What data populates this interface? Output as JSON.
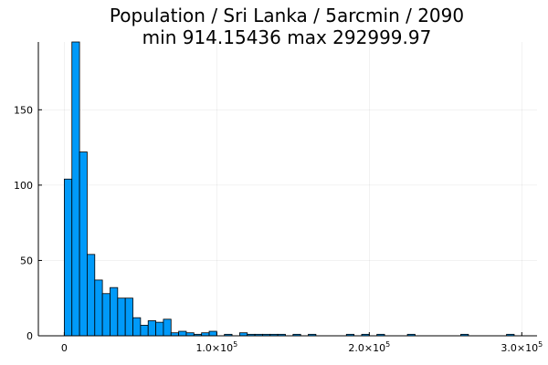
{
  "chart_data": {
    "type": "bar",
    "title_line1": "Population / Sri Lanka / 5arcmin / 2090",
    "title_line2": "min 914.15436  max 292999.97",
    "xlabel": "",
    "ylabel": "",
    "bin_width": 5000,
    "xlim": [
      -17000,
      310000
    ],
    "ylim": [
      0,
      195
    ],
    "grid": true,
    "legend": "none",
    "bar_color": "#009af9",
    "bar_edge_color": "#000000",
    "x_ticks": [
      {
        "value": 0,
        "mant": "0",
        "exp": ""
      },
      {
        "value": 100000,
        "mant": "1.0×10",
        "exp": "5"
      },
      {
        "value": 200000,
        "mant": "2.0×10",
        "exp": "5"
      },
      {
        "value": 300000,
        "mant": "3.0×10",
        "exp": "5"
      }
    ],
    "y_ticks": [
      0,
      50,
      100,
      150
    ],
    "bins": [
      {
        "x0": 0,
        "count": 104
      },
      {
        "x0": 5000,
        "count": 195
      },
      {
        "x0": 10000,
        "count": 122
      },
      {
        "x0": 15000,
        "count": 54
      },
      {
        "x0": 20000,
        "count": 37
      },
      {
        "x0": 25000,
        "count": 28
      },
      {
        "x0": 30000,
        "count": 32
      },
      {
        "x0": 35000,
        "count": 25
      },
      {
        "x0": 40000,
        "count": 25
      },
      {
        "x0": 45000,
        "count": 12
      },
      {
        "x0": 50000,
        "count": 7
      },
      {
        "x0": 55000,
        "count": 10
      },
      {
        "x0": 60000,
        "count": 9
      },
      {
        "x0": 65000,
        "count": 11
      },
      {
        "x0": 70000,
        "count": 2
      },
      {
        "x0": 75000,
        "count": 3
      },
      {
        "x0": 80000,
        "count": 2
      },
      {
        "x0": 85000,
        "count": 1
      },
      {
        "x0": 90000,
        "count": 2
      },
      {
        "x0": 95000,
        "count": 3
      },
      {
        "x0": 105000,
        "count": 1
      },
      {
        "x0": 115000,
        "count": 2
      },
      {
        "x0": 120000,
        "count": 1
      },
      {
        "x0": 125000,
        "count": 1
      },
      {
        "x0": 130000,
        "count": 1
      },
      {
        "x0": 135000,
        "count": 1
      },
      {
        "x0": 140000,
        "count": 1
      },
      {
        "x0": 150000,
        "count": 1
      },
      {
        "x0": 160000,
        "count": 1
      },
      {
        "x0": 185000,
        "count": 1
      },
      {
        "x0": 195000,
        "count": 1
      },
      {
        "x0": 205000,
        "count": 1
      },
      {
        "x0": 225000,
        "count": 1
      },
      {
        "x0": 260000,
        "count": 1
      },
      {
        "x0": 290000,
        "count": 1
      }
    ]
  }
}
